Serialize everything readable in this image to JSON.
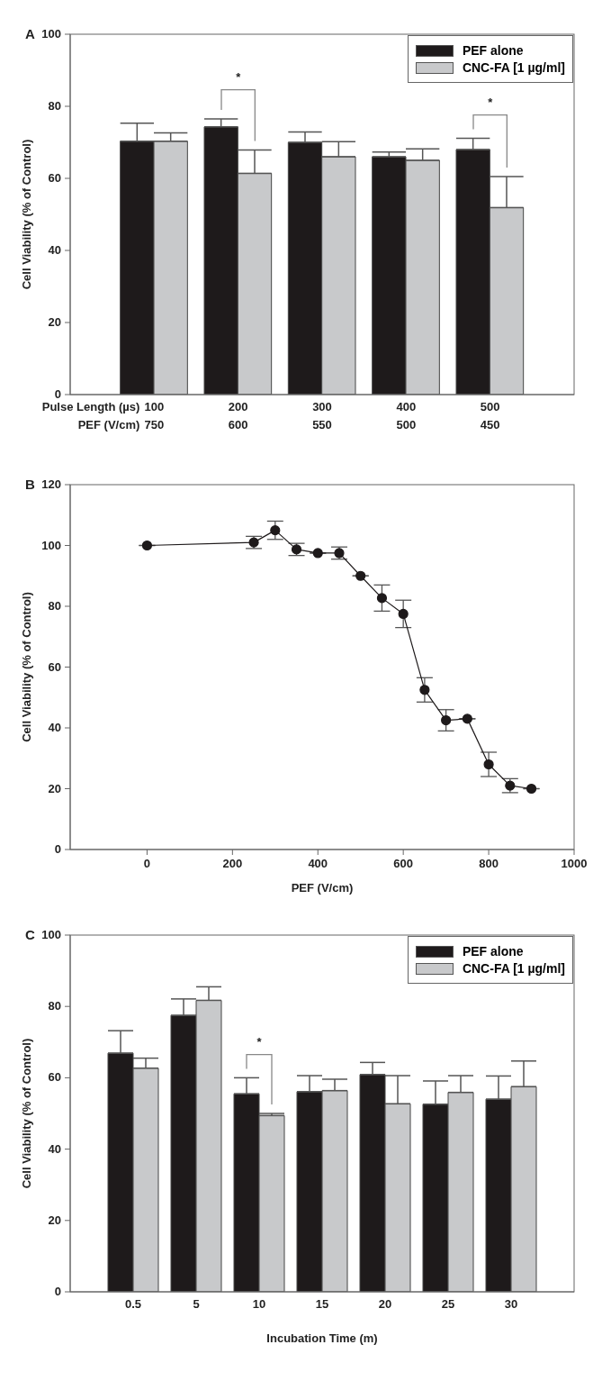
{
  "chart_data": [
    {
      "type": "bar",
      "title": "A",
      "categories": [
        "100\n750",
        "200\n600",
        "300\n550",
        "400\n500",
        "500\n450"
      ],
      "xlabel": "Pulse Length (µs)\nPEF (V/cm)",
      "ylabel": "Cell Viability (% of Control)",
      "ylim": [
        0,
        100
      ],
      "yticks": [
        0,
        20,
        40,
        60,
        80,
        100
      ],
      "legend": "top right",
      "series": [
        {
          "name": "PEF alone",
          "color": "#1e1a1b",
          "values": [
            70.3,
            74.3,
            70,
            66,
            68
          ],
          "errors": [
            [
              70.3,
              75.3
            ],
            [
              74.3,
              76.5
            ],
            [
              70,
              72.9
            ],
            [
              66,
              67.3
            ],
            [
              68,
              71.1
            ]
          ]
        },
        {
          "name": "CNC-FA [1 µg/ml]",
          "color": "#c8c9cb",
          "values": [
            70.3,
            61.4,
            66,
            65,
            51.9
          ],
          "errors": [
            [
              70.3,
              72.6
            ],
            [
              61.4,
              67.9
            ],
            [
              66,
              70.2
            ],
            [
              65,
              68.2
            ],
            [
              51.9,
              60.5
            ]
          ]
        }
      ],
      "annotations": [
        "*",
        "*"
      ]
    },
    {
      "type": "line",
      "title": "B",
      "x": [
        0,
        250,
        300,
        350,
        400,
        450,
        500,
        550,
        600,
        650,
        700,
        750,
        800,
        850,
        900
      ],
      "xlabel": "PEF (V/cm)",
      "ylabel": "Cell Viability (% of Control)",
      "xlim": [
        -180,
        1000
      ],
      "xticks": [
        0,
        200,
        400,
        600,
        800,
        1000
      ],
      "ylim": [
        0,
        120
      ],
      "yticks": [
        0,
        20,
        40,
        60,
        80,
        100,
        120
      ],
      "marker": "circle",
      "line_style": "solid",
      "series": [
        {
          "color": "#1e1a1b",
          "values": [
            100,
            101,
            105,
            98.7,
            97.5,
            97.5,
            90,
            82.7,
            77.5,
            52.5,
            42.5,
            43,
            28,
            21,
            20
          ],
          "errors": [
            null,
            2,
            3,
            2,
            null,
            2,
            null,
            4.3,
            4.5,
            4,
            3.5,
            null,
            4,
            2.3,
            null
          ]
        }
      ]
    },
    {
      "type": "bar",
      "title": "C",
      "categories": [
        "0.5",
        "5",
        "10",
        "15",
        "20",
        "25",
        "30"
      ],
      "xlabel": "Incubation Time (m)",
      "ylabel": "Cell Viability (% of Control)",
      "ylim": [
        0,
        100
      ],
      "yticks": [
        0,
        20,
        40,
        60,
        80,
        100
      ],
      "legend": "top right",
      "series": [
        {
          "name": "PEF alone",
          "color": "#1e1a1b",
          "values": [
            66.9,
            77.5,
            55.5,
            56.1,
            60.9,
            52.6,
            54
          ],
          "errors": [
            [
              66.9,
              73.2
            ],
            [
              77.5,
              82.1
            ],
            [
              55.5,
              60
            ],
            [
              56.1,
              60.6
            ],
            [
              60.9,
              64.3
            ],
            [
              52.6,
              59.1
            ],
            [
              54,
              60.5
            ]
          ]
        },
        {
          "name": "CNC-FA [1 µg/ml]",
          "color": "#c8c9cb",
          "values": [
            62.7,
            81.7,
            49.4,
            56.4,
            52.7,
            55.9,
            57.5
          ],
          "errors": [
            [
              62.7,
              65.5
            ],
            [
              81.7,
              85.5
            ],
            [
              49.4,
              50
            ],
            [
              56.4,
              59.6
            ],
            [
              52.7,
              60.6
            ],
            [
              55.9,
              60.6
            ],
            [
              57.5,
              64.7
            ]
          ]
        }
      ],
      "annotations": [
        "*"
      ]
    }
  ]
}
